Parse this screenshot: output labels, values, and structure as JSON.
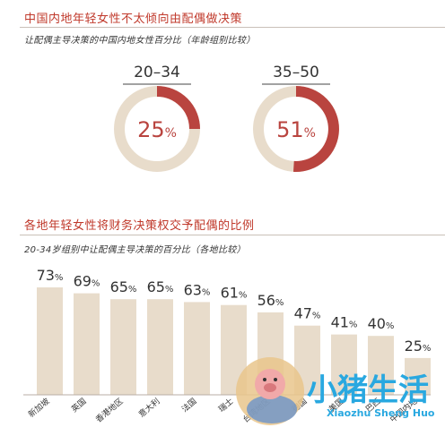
{
  "section1": {
    "title": "中国内地年轻女性不太倾向由配偶做决策",
    "subtitle": "让配偶主导决策的中国内地女性百分比（年龄组别比较）"
  },
  "section2": {
    "title": "各地年轻女性将财务决策权交予配偶的比例",
    "subtitle": "20-34岁组别中让配偶主导决策的百分比（各地比较）"
  },
  "colors": {
    "accent": "#b9443f",
    "beige": "#e8dccb",
    "title_red": "#c0392b"
  },
  "chart_data": [
    {
      "type": "pie",
      "variant": "donut",
      "categories": [
        "20–34",
        "35–50"
      ],
      "values": [
        25,
        51
      ],
      "unit": "%"
    },
    {
      "type": "bar",
      "categories": [
        "新加坡",
        "英国",
        "香港地区",
        "意大利",
        "法国",
        "瑞士",
        "台湾地区",
        "德国",
        "美国",
        "巴西",
        "中国内地"
      ],
      "values": [
        73,
        69,
        65,
        65,
        63,
        61,
        56,
        47,
        41,
        40,
        25
      ],
      "unit": "%"
    }
  ],
  "watermark": {
    "text": "小猪生活",
    "url_text": "Xiaozhu Sheng Huo"
  }
}
